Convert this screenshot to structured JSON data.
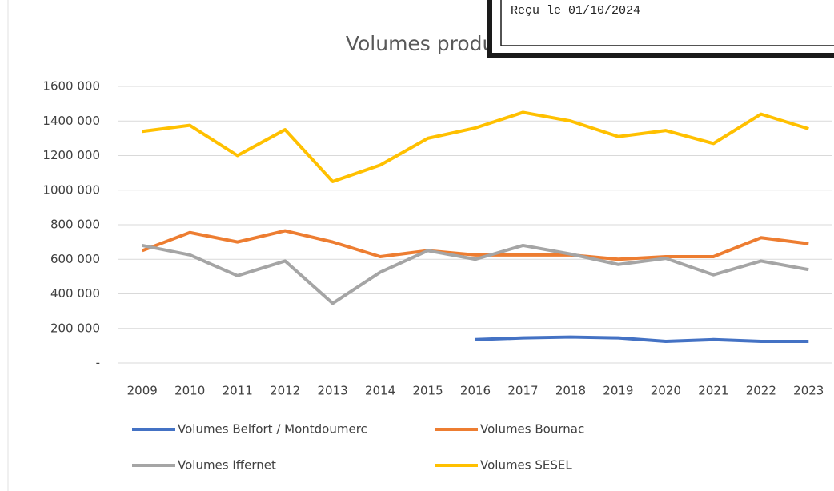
{
  "chart_data": {
    "type": "line",
    "title": "Volumes produits",
    "stamp": "Reçu le 01/10/2024",
    "categories": [
      "2009",
      "2010",
      "2011",
      "2012",
      "2013",
      "2014",
      "2015",
      "2016",
      "2017",
      "2018",
      "2019",
      "2020",
      "2021",
      "2022",
      "2023"
    ],
    "series": [
      {
        "name": "Volumes Belfort / Montdoumerc",
        "color": "#4472c4",
        "values": [
          null,
          null,
          null,
          null,
          null,
          null,
          null,
          135000,
          145000,
          150000,
          145000,
          125000,
          135000,
          125000,
          125000
        ]
      },
      {
        "name": "Volumes Bournac",
        "color": "#ed7d31",
        "values": [
          650000,
          755000,
          700000,
          765000,
          700000,
          615000,
          650000,
          625000,
          625000,
          625000,
          600000,
          615000,
          615000,
          725000,
          690000
        ]
      },
      {
        "name": "Volumes Iffernet",
        "color": "#a5a5a5",
        "values": [
          680000,
          625000,
          505000,
          590000,
          345000,
          525000,
          650000,
          600000,
          680000,
          630000,
          570000,
          605000,
          510000,
          590000,
          540000
        ]
      },
      {
        "name": "Volumes SESEL",
        "color": "#ffc000",
        "values": [
          1340000,
          1375000,
          1200000,
          1350000,
          1050000,
          1145000,
          1300000,
          1360000,
          1450000,
          1400000,
          1310000,
          1345000,
          1270000,
          1440000,
          1355000
        ]
      }
    ],
    "ylim": [
      0,
      1600000
    ],
    "yticks": [
      {
        "value": 0,
        "label": "-"
      },
      {
        "value": 200000,
        "label": "200 000"
      },
      {
        "value": 400000,
        "label": "400 000"
      },
      {
        "value": 600000,
        "label": "600 000"
      },
      {
        "value": 800000,
        "label": "800 000"
      },
      {
        "value": 1000000,
        "label": "1000 000"
      },
      {
        "value": 1200000,
        "label": "1200 000"
      },
      {
        "value": 1400000,
        "label": "1400 000"
      },
      {
        "value": 1600000,
        "label": "1600 000"
      }
    ],
    "grid": true
  }
}
